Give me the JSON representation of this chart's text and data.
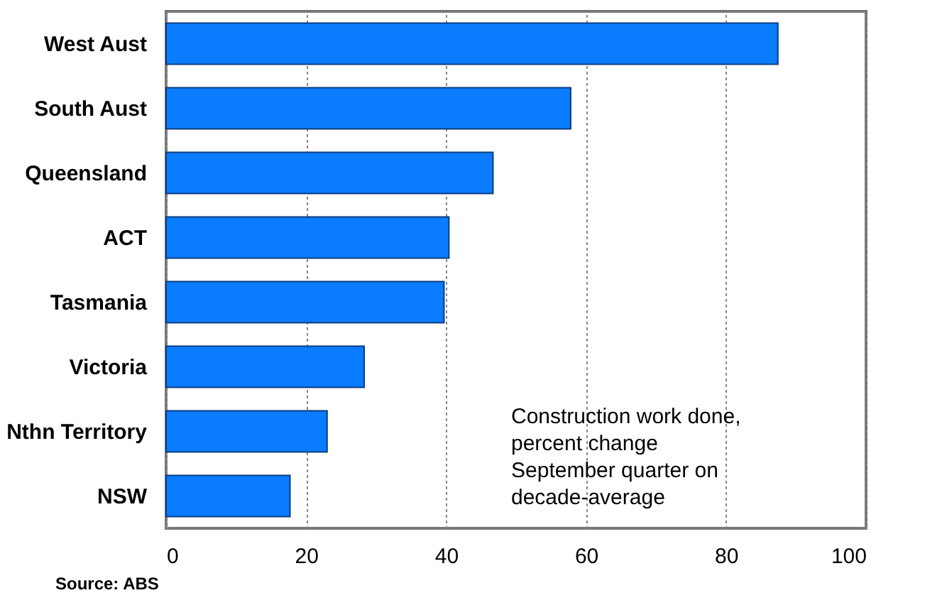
{
  "chart_data": {
    "type": "bar",
    "orientation": "horizontal",
    "categories": [
      "West Aust",
      "South Aust",
      "Queensland",
      "ACT",
      "Tasmania",
      "Victoria",
      "Nthn Territory",
      "NSW"
    ],
    "values": [
      87.4,
      57.8,
      46.7,
      40.4,
      39.7,
      28.3,
      23,
      17.7
    ],
    "color": "#0a7cff",
    "xlim": [
      0,
      100
    ],
    "xticks": [
      0,
      20,
      40,
      60,
      80,
      100
    ],
    "grid": "x",
    "annotations": [
      "Construction work done,\npercent change\nSeptember quarter on\ndecade-average",
      "Source: ABS"
    ]
  }
}
